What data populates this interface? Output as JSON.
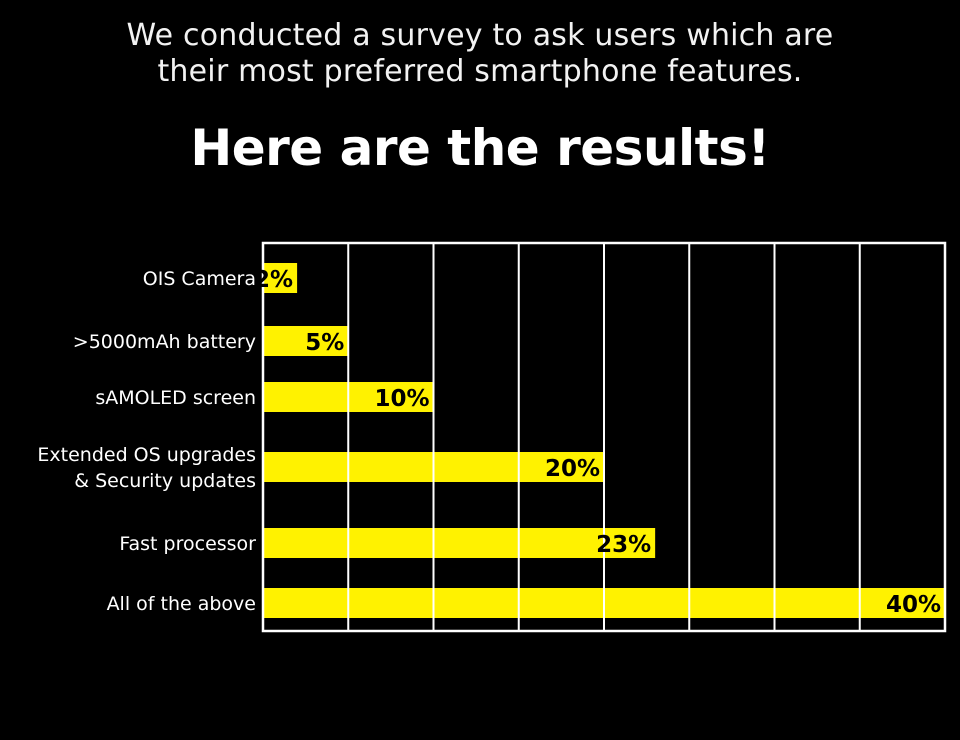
{
  "header": {
    "subtitle_line1": "We conducted a survey to ask users which are",
    "subtitle_line2": "their most preferred smartphone features.",
    "title": "Here are the results!"
  },
  "colors": {
    "background": "#000000",
    "bar": "#fff200",
    "grid": "#ffffff",
    "text": "#ffffff",
    "value_text": "#000000"
  },
  "chart_data": {
    "type": "bar",
    "orientation": "horizontal",
    "categories": [
      [
        "OIS Camera"
      ],
      [
        ">5000mAh battery"
      ],
      [
        "sAMOLED screen"
      ],
      [
        "Extended OS upgrades",
        "& Security updates"
      ],
      [
        "Fast processor"
      ],
      [
        "All of the above"
      ]
    ],
    "values": [
      2,
      5,
      10,
      20,
      23,
      40
    ],
    "value_labels": [
      "2%",
      "5%",
      "10%",
      "20%",
      "23%",
      "40%"
    ],
    "unit": "%",
    "xlim": [
      0,
      40
    ],
    "vertical_gridlines": 8,
    "grid": true,
    "legend": "none"
  }
}
